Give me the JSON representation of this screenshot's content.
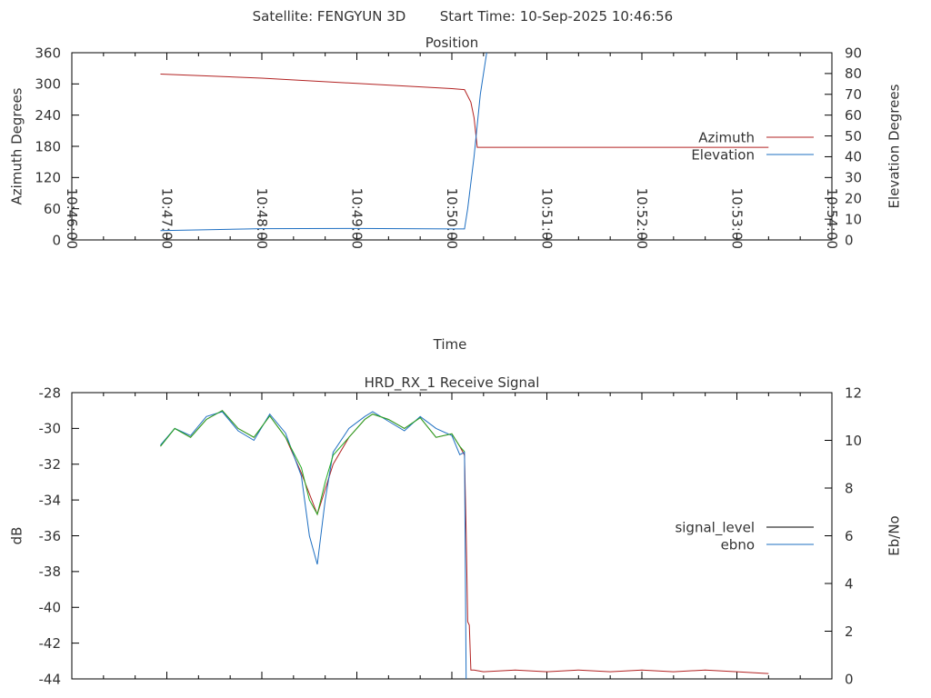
{
  "header": {
    "satellite_text": "Satellite: FENGYUN 3D",
    "start_time_text": "Start Time: 10-Sep-2025 10:46:56"
  },
  "chart_data": [
    {
      "type": "line",
      "title": "Position",
      "xlabel": "Time",
      "ylabel": "Azimuth Degrees",
      "y2label": "Elevation Degrees",
      "xlim": [
        "10:46:00",
        "10:54:00"
      ],
      "x_ticks": [
        "10:46:00",
        "10:47:00",
        "10:48:00",
        "10:49:00",
        "10:50:00",
        "10:51:00",
        "10:52:00",
        "10:53:00",
        "10:54:00"
      ],
      "ylim": [
        0,
        360
      ],
      "y_ticks": [
        0,
        60,
        120,
        180,
        240,
        300,
        360
      ],
      "y2lim": [
        0,
        90
      ],
      "y2_ticks": [
        0,
        10,
        20,
        30,
        40,
        50,
        60,
        70,
        80,
        90
      ],
      "grid": false,
      "legend_position": "right",
      "series": [
        {
          "name": "Azimuth",
          "axis": "left",
          "color": "#b22222",
          "x": [
            "10:46:56",
            "10:48:00",
            "10:49:00",
            "10:50:00",
            "10:50:08",
            "10:50:12",
            "10:50:14",
            "10:50:16",
            "10:53:20"
          ],
          "y": [
            319,
            311,
            301,
            291,
            289,
            265,
            235,
            178,
            178
          ]
        },
        {
          "name": "Elevation",
          "axis": "right",
          "color": "#1e6fc2",
          "x": [
            "10:46:56",
            "10:47:30",
            "10:48:00",
            "10:49:00",
            "10:50:00",
            "10:50:08",
            "10:50:10",
            "10:50:14",
            "10:50:18",
            "10:50:22"
          ],
          "y": [
            4.5,
            5,
            5.4,
            5.5,
            5.3,
            5.3,
            15,
            40,
            70,
            90
          ]
        }
      ]
    },
    {
      "type": "line",
      "title": "HRD_RX_1 Receive Signal",
      "xlabel": "",
      "ylabel": "dB",
      "y2label": "Eb/No",
      "xlim": [
        "10:46:00",
        "10:54:00"
      ],
      "ylim": [
        -44,
        -28
      ],
      "y_ticks": [
        -28,
        -30,
        -32,
        -34,
        -36,
        -38,
        -40,
        -42,
        -44
      ],
      "y2lim": [
        0,
        12
      ],
      "y2_ticks": [
        0,
        2,
        4,
        6,
        8,
        10,
        12
      ],
      "grid": false,
      "legend_position": "right",
      "series": [
        {
          "name": "signal_level",
          "axis": "left",
          "color": "#b22222",
          "x": [
            "10:46:56",
            "10:47:05",
            "10:47:15",
            "10:47:25",
            "10:47:35",
            "10:47:45",
            "10:47:55",
            "10:48:05",
            "10:48:15",
            "10:48:25",
            "10:48:35",
            "10:48:45",
            "10:48:55",
            "10:49:05",
            "10:49:10",
            "10:49:20",
            "10:49:30",
            "10:49:40",
            "10:49:50",
            "10:50:00",
            "10:50:05",
            "10:50:08",
            "10:50:09",
            "10:50:10",
            "10:50:11",
            "10:50:12",
            "10:50:14",
            "10:50:20",
            "10:50:40",
            "10:51:00",
            "10:51:20",
            "10:51:40",
            "10:52:00",
            "10:52:20",
            "10:52:40",
            "10:53:00",
            "10:53:20"
          ],
          "y": [
            -31.0,
            -30.0,
            -30.5,
            -29.5,
            -29.0,
            -30.0,
            -30.5,
            -29.3,
            -30.5,
            -32.5,
            -34.8,
            -32.0,
            -30.5,
            -29.5,
            -29.2,
            -29.5,
            -30.0,
            -29.4,
            -30.5,
            -30.3,
            -31.0,
            -31.5,
            -35.8,
            -40.8,
            -41.0,
            -43.5,
            -43.5,
            -43.6,
            -43.5,
            -43.6,
            -43.5,
            -43.6,
            -43.5,
            -43.6,
            -43.5,
            -43.6,
            -43.7
          ]
        },
        {
          "name": "ebno",
          "axis": "right",
          "color": "#1e6fc2",
          "x": [
            "10:46:56",
            "10:47:05",
            "10:47:15",
            "10:47:25",
            "10:47:35",
            "10:47:45",
            "10:47:55",
            "10:48:05",
            "10:48:15",
            "10:48:25",
            "10:48:30",
            "10:48:35",
            "10:48:40",
            "10:48:45",
            "10:48:55",
            "10:49:05",
            "10:49:10",
            "10:49:20",
            "10:49:30",
            "10:49:40",
            "10:49:50",
            "10:50:00",
            "10:50:05",
            "10:50:08",
            "10:50:09"
          ],
          "y": [
            9.8,
            10.5,
            10.2,
            11.0,
            11.2,
            10.4,
            10.0,
            11.1,
            10.3,
            8.5,
            6.0,
            4.8,
            7.5,
            9.5,
            10.5,
            11.0,
            11.2,
            10.8,
            10.4,
            11.0,
            10.5,
            10.2,
            9.4,
            9.5,
            0
          ]
        },
        {
          "name": "",
          "axis": "left",
          "color": "#22aa22",
          "x": [
            "10:46:56",
            "10:47:05",
            "10:47:15",
            "10:47:25",
            "10:47:35",
            "10:47:45",
            "10:47:55",
            "10:48:05",
            "10:48:15",
            "10:48:25",
            "10:48:30",
            "10:48:35",
            "10:48:40",
            "10:48:45",
            "10:48:55",
            "10:49:05",
            "10:49:10",
            "10:49:20",
            "10:49:30",
            "10:49:40",
            "10:49:50",
            "10:50:00",
            "10:50:05",
            "10:50:08"
          ],
          "y": [
            -31.0,
            -30.0,
            -30.5,
            -29.5,
            -29.0,
            -30.0,
            -30.5,
            -29.3,
            -30.5,
            -32.2,
            -34.0,
            -34.8,
            -33.0,
            -31.5,
            -30.5,
            -29.5,
            -29.2,
            -29.5,
            -30.0,
            -29.4,
            -30.5,
            -30.3,
            -31.0,
            -31.3
          ]
        }
      ]
    }
  ]
}
